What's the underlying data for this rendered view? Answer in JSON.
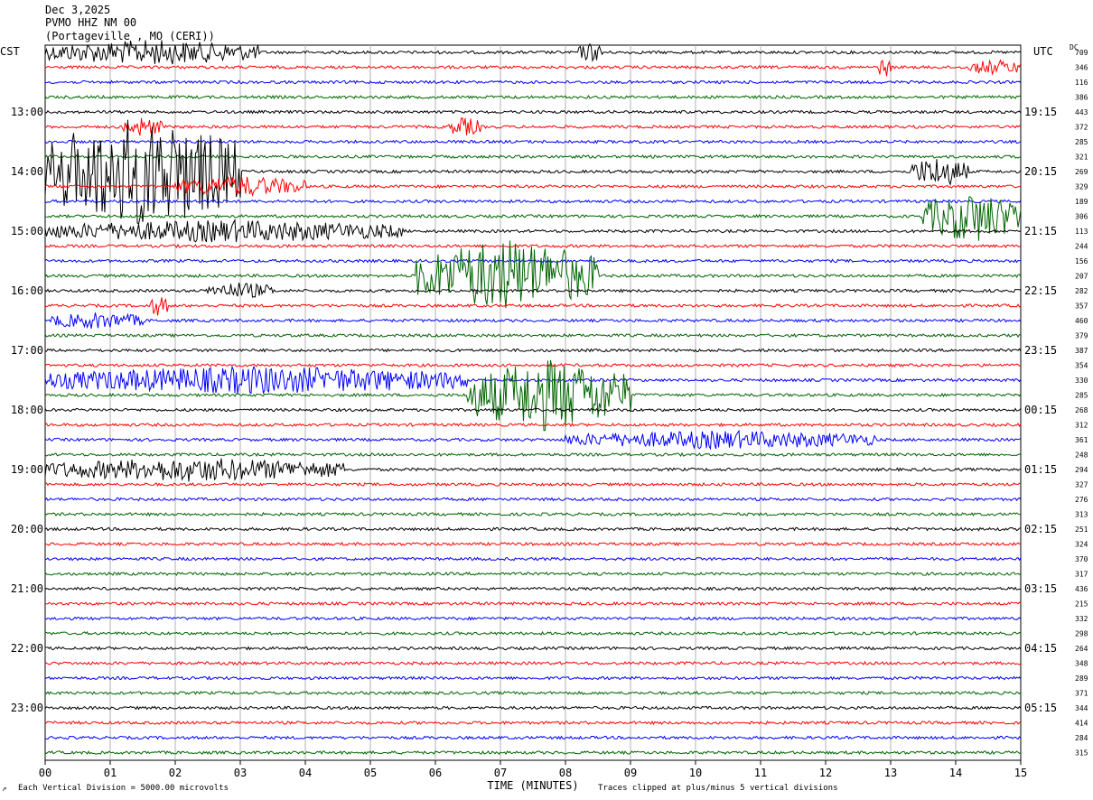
{
  "header": {
    "date": "Dec 3,2025",
    "station": "PVMO HHZ NM 00",
    "location": "(Portageville , MO (CERI))"
  },
  "left_tz": "CST",
  "right_tz": "UTC",
  "dc_label": "DC",
  "footer": {
    "scale_note": "Each Vertical Division = 5000.00 microvolts",
    "clip_note": "Traces clipped at plus/minus 5 vertical divisions"
  },
  "colors": {
    "trace_cycle": [
      "#000000",
      "#ff0000",
      "#0000ff",
      "#006400"
    ],
    "grid": "#b0b0b0"
  },
  "chart_data": {
    "type": "line",
    "xlabel": "TIME (MINUTES)",
    "xlim": [
      0,
      15
    ],
    "x_ticks": [
      "00",
      "01",
      "02",
      "03",
      "04",
      "05",
      "06",
      "07",
      "08",
      "09",
      "10",
      "11",
      "12",
      "13",
      "14",
      "15"
    ],
    "left_hour_labels": [
      "13:00",
      "14:00",
      "15:00",
      "16:00",
      "17:00",
      "18:00",
      "19:00",
      "20:00",
      "21:00",
      "22:00",
      "23:00"
    ],
    "right_hour_labels": [
      "19:15",
      "20:15",
      "21:15",
      "22:15",
      "23:15",
      "00:15",
      "01:15",
      "02:15",
      "03:15",
      "04:15",
      "05:15"
    ],
    "first_labeled_trace_index": 4,
    "traces_per_hour": 4,
    "dc_offsets": [
      709,
      346,
      116,
      386,
      443,
      372,
      285,
      321,
      269,
      329,
      189,
      306,
      113,
      244,
      156,
      207,
      282,
      357,
      460,
      379,
      387,
      354,
      330,
      285,
      268,
      312,
      361,
      248,
      294,
      327,
      276,
      313,
      251,
      324,
      370,
      317,
      436,
      215,
      332,
      298,
      264,
      348,
      289,
      371,
      344,
      414,
      284,
      315
    ],
    "events": [
      {
        "trace": 0,
        "start_min": 0.0,
        "end_min": 3.3,
        "amplitude": 1.6
      },
      {
        "trace": 0,
        "start_min": 8.2,
        "end_min": 8.6,
        "amplitude": 1.2
      },
      {
        "trace": 1,
        "start_min": 12.8,
        "end_min": 13.0,
        "amplitude": 1.3
      },
      {
        "trace": 1,
        "start_min": 14.2,
        "end_min": 15.0,
        "amplitude": 0.9
      },
      {
        "trace": 5,
        "start_min": 1.2,
        "end_min": 1.8,
        "amplitude": 1.2
      },
      {
        "trace": 5,
        "start_min": 6.2,
        "end_min": 6.7,
        "amplitude": 1.2
      },
      {
        "trace": 8,
        "start_min": 0.0,
        "end_min": 3.0,
        "amplitude": 8.0
      },
      {
        "trace": 8,
        "start_min": 13.3,
        "end_min": 14.2,
        "amplitude": 2.0
      },
      {
        "trace": 9,
        "start_min": 2.0,
        "end_min": 4.0,
        "amplitude": 1.3
      },
      {
        "trace": 11,
        "start_min": 13.5,
        "end_min": 15.0,
        "amplitude": 3.5
      },
      {
        "trace": 12,
        "start_min": 0.0,
        "end_min": 5.5,
        "amplitude": 1.4
      },
      {
        "trace": 15,
        "start_min": 5.7,
        "end_min": 8.5,
        "amplitude": 5.0
      },
      {
        "trace": 16,
        "start_min": 2.5,
        "end_min": 3.5,
        "amplitude": 1.0
      },
      {
        "trace": 17,
        "start_min": 1.6,
        "end_min": 1.9,
        "amplitude": 1.3
      },
      {
        "trace": 18,
        "start_min": 0.1,
        "end_min": 1.5,
        "amplitude": 1.0
      },
      {
        "trace": 22,
        "start_min": 0.0,
        "end_min": 6.5,
        "amplitude": 1.8
      },
      {
        "trace": 23,
        "start_min": 6.5,
        "end_min": 9.0,
        "amplitude": 5.0
      },
      {
        "trace": 26,
        "start_min": 8.0,
        "end_min": 12.8,
        "amplitude": 1.1
      },
      {
        "trace": 28,
        "start_min": 0.0,
        "end_min": 4.6,
        "amplitude": 1.5
      }
    ]
  }
}
